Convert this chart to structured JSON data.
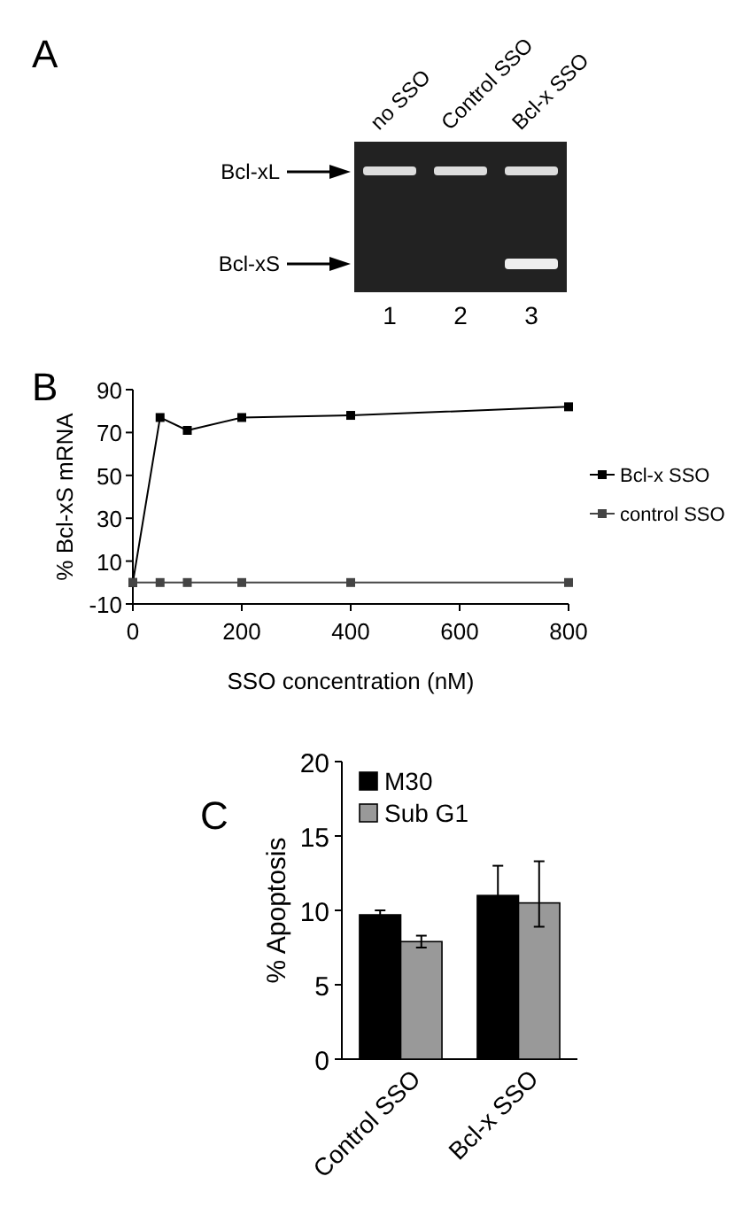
{
  "chart_data": [
    {
      "type": "other",
      "title": "A",
      "annotations": [
        "no SSO",
        "Control SSO",
        "Bcl-x SSO",
        "Bcl-xL",
        "Bcl-xS",
        "1",
        "2",
        "3"
      ]
    },
    {
      "type": "line",
      "title": "B",
      "xlabel": "SSO concentration (nM)",
      "ylabel": "% Bcl-xS mRNA",
      "x": [
        0,
        50,
        100,
        200,
        400,
        800
      ],
      "xlim": [
        0,
        800
      ],
      "xticks": [
        0,
        200,
        400,
        600,
        800
      ],
      "ylim": [
        -10,
        90
      ],
      "yticks": [
        -10,
        10,
        30,
        50,
        70,
        90
      ],
      "marker": "square",
      "legend": "right",
      "series": [
        {
          "name": "Bcl-x SSO",
          "color": "#000000",
          "values": [
            0,
            77,
            71,
            77,
            78,
            82
          ]
        },
        {
          "name": "control SSO",
          "color": "#444444",
          "values": [
            0,
            0,
            0,
            0,
            0,
            0
          ]
        }
      ]
    },
    {
      "type": "bar",
      "title": "C",
      "ylabel": "% Apoptosis",
      "categories": [
        "Control SSO",
        "Bcl-x SSO"
      ],
      "ylim": [
        0,
        20
      ],
      "yticks": [
        0,
        5,
        10,
        15,
        20
      ],
      "legend": "top left",
      "series": [
        {
          "name": "M30",
          "color": "#000000",
          "values": [
            9.7,
            11.0
          ],
          "errors": [
            0.3,
            2.0
          ]
        },
        {
          "name": "Sub G1",
          "color": "#999999",
          "values": [
            7.9,
            10.5
          ],
          "errors": [
            0.4,
            [
              8.9,
              13.3
            ]
          ]
        }
      ]
    }
  ]
}
